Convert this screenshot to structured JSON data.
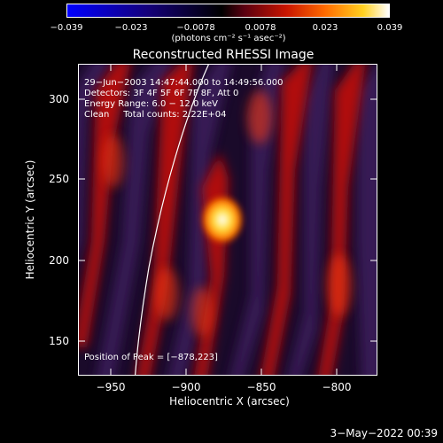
{
  "colorbar": {
    "ticks": [
      "−0.039",
      "−0.023",
      "−0.0078",
      "0.0078",
      "0.023",
      "0.039"
    ],
    "units": "(photons cm⁻² s⁻¹ asec⁻²)",
    "colors": [
      "#0000ff",
      "#14007a",
      "#000000",
      "#5a0010",
      "#c81400",
      "#ff6a00",
      "#ffd020",
      "#ffffff"
    ]
  },
  "title": "Reconstructed RHESSI Image",
  "annotations": {
    "time_range": "29−Jun−2003 14:47:44.000 to 14:49:56.000",
    "detectors": "Detectors: 3F 4F 5F 6F 7F 8F, Att 0",
    "energy_range": "Energy Range: 6.0 − 12.0 keV",
    "method": "Clean     Total counts: 2.22E+04",
    "peak_position": "Position of Peak = [−878,223]"
  },
  "axes": {
    "xlabel": "Heliocentric X (arcsec)",
    "ylabel": "Heliocentric Y (arcsec)",
    "xticks": [
      "−950",
      "−900",
      "−850",
      "−800"
    ],
    "yticks": [
      "150",
      "200",
      "250",
      "300"
    ],
    "xlim": [
      -974,
      -775
    ],
    "ylim": [
      129,
      326
    ]
  },
  "footer_date": "3−May−2022 00:39"
}
